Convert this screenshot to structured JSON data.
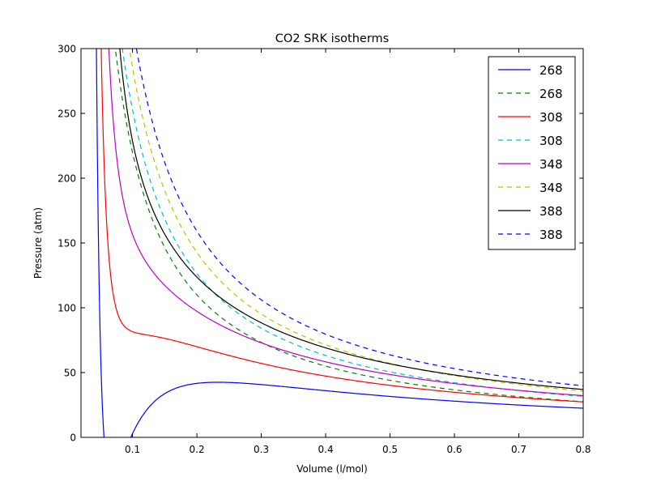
{
  "chart_data": {
    "type": "line",
    "title": "CO2 SRK isotherms",
    "xlabel": "Volume (l/mol)",
    "ylabel": "Pressure (atm)",
    "xlim": [
      0.02,
      0.8
    ],
    "ylim": [
      0,
      300
    ],
    "xticks": [
      0.1,
      0.2,
      0.3,
      0.4,
      0.5,
      0.6,
      0.7,
      0.8
    ],
    "xtick_labels": [
      "0.1",
      "0.2",
      "0.3",
      "0.4",
      "0.5",
      "0.6",
      "0.7",
      "0.8"
    ],
    "yticks": [
      0,
      50,
      100,
      150,
      200,
      250,
      300
    ],
    "ytick_labels": [
      "0",
      "50",
      "100",
      "150",
      "200",
      "250",
      "300"
    ],
    "grid": false,
    "legend_position": "top-right",
    "series": [
      {
        "name": "268",
        "color": "#0000ff",
        "dash": "solid",
        "kind": "srk",
        "T": 268,
        "x": [
          0.045,
          0.05,
          0.055,
          0.06,
          0.065,
          0.07,
          0.075,
          0.08,
          0.09,
          0.1,
          0.12,
          0.15,
          0.18,
          0.21,
          0.25,
          0.3,
          0.35,
          0.4,
          0.5,
          0.6,
          0.7,
          0.8
        ],
        "y": [
          300,
          186,
          91,
          28,
          -8,
          -24,
          -26,
          -19,
          -1,
          14,
          32,
          43,
          46,
          46,
          44,
          41,
          38,
          36,
          31,
          28,
          25,
          23
        ]
      },
      {
        "name": "268",
        "color": "#008000",
        "dash": "dashed",
        "kind": "ideal",
        "T": 268,
        "x": [
          0.073,
          0.08,
          0.09,
          0.1,
          0.11,
          0.12,
          0.13,
          0.15,
          0.17,
          0.2,
          0.25,
          0.3,
          0.35,
          0.4,
          0.45,
          0.5,
          0.6,
          0.7,
          0.8
        ],
        "y": [
          300,
          274.9,
          244.4,
          219.9,
          199.9,
          183.3,
          169.2,
          146.6,
          129.4,
          110,
          88,
          73.3,
          62.8,
          55,
          48.9,
          44,
          36.7,
          31.4,
          27.5
        ]
      },
      {
        "name": "308",
        "color": "#ff0000",
        "dash": "solid",
        "kind": "srk",
        "T": 308,
        "x": [
          0.055,
          0.06,
          0.065,
          0.07,
          0.075,
          0.08,
          0.085,
          0.09,
          0.1,
          0.12,
          0.15,
          0.2,
          0.25,
          0.3,
          0.35,
          0.4,
          0.5,
          0.6,
          0.7,
          0.8
        ],
        "y": [
          300,
          242,
          162,
          122,
          99,
          87,
          81,
          79,
          78,
          76,
          72,
          66,
          60,
          55,
          51,
          47,
          40,
          35,
          31,
          28
        ]
      },
      {
        "name": "308",
        "color": "#00bfbf",
        "dash": "dashed",
        "kind": "ideal",
        "T": 308,
        "x": [
          0.084,
          0.09,
          0.1,
          0.11,
          0.12,
          0.13,
          0.15,
          0.17,
          0.2,
          0.25,
          0.3,
          0.35,
          0.4,
          0.45,
          0.5,
          0.6,
          0.7,
          0.8
        ],
        "y": [
          300,
          280.9,
          252.8,
          229.8,
          210.6,
          194.4,
          168.5,
          148.7,
          126.4,
          101.1,
          84.3,
          72.2,
          63.2,
          56.2,
          50.5,
          42.1,
          36.1,
          31.6
        ]
      },
      {
        "name": "348",
        "color": "#bf00bf",
        "dash": "solid",
        "kind": "srk",
        "T": 348,
        "x": [
          0.064,
          0.07,
          0.075,
          0.08,
          0.09,
          0.1,
          0.11,
          0.12,
          0.13,
          0.15,
          0.18,
          0.2,
          0.25,
          0.3,
          0.35,
          0.4,
          0.5,
          0.6,
          0.7,
          0.8
        ],
        "y": [
          300,
          250,
          212,
          181,
          150,
          130,
          119,
          112,
          106,
          98,
          90,
          86,
          76,
          67,
          60,
          54,
          45,
          39,
          34,
          30
        ]
      },
      {
        "name": "348",
        "color": "#bfbf00",
        "dash": "dashed",
        "kind": "ideal",
        "T": 348,
        "x": [
          0.095,
          0.1,
          0.11,
          0.12,
          0.13,
          0.15,
          0.17,
          0.2,
          0.25,
          0.3,
          0.35,
          0.4,
          0.45,
          0.5,
          0.6,
          0.7,
          0.8
        ],
        "y": [
          300,
          285.6,
          259.6,
          238,
          219.7,
          190.4,
          168,
          142.8,
          114.2,
          95.2,
          81.6,
          71.4,
          63.5,
          57.1,
          47.6,
          40.8,
          35.7
        ]
      },
      {
        "name": "388",
        "color": "#000000",
        "dash": "solid",
        "kind": "srk",
        "T": 388,
        "x": [
          0.079,
          0.085,
          0.09,
          0.1,
          0.11,
          0.12,
          0.13,
          0.15,
          0.17,
          0.2,
          0.25,
          0.3,
          0.35,
          0.4,
          0.5,
          0.6,
          0.7,
          0.8
        ],
        "y": [
          300,
          265,
          242,
          206,
          182,
          165,
          151,
          131,
          117,
          101,
          83,
          71,
          62,
          55,
          45,
          40,
          39,
          36
        ]
      },
      {
        "name": "388",
        "color": "#0000ff",
        "dash": "dashed",
        "kind": "ideal",
        "T": 388,
        "x": [
          0.106,
          0.11,
          0.12,
          0.13,
          0.15,
          0.17,
          0.2,
          0.25,
          0.3,
          0.35,
          0.4,
          0.45,
          0.5,
          0.6,
          0.7,
          0.8
        ],
        "y": [
          300,
          289.5,
          265.3,
          244.9,
          212.3,
          187.3,
          159.2,
          127.4,
          106.1,
          91,
          79.6,
          70.8,
          63.7,
          53.1,
          45.5,
          39.8
        ]
      }
    ]
  }
}
